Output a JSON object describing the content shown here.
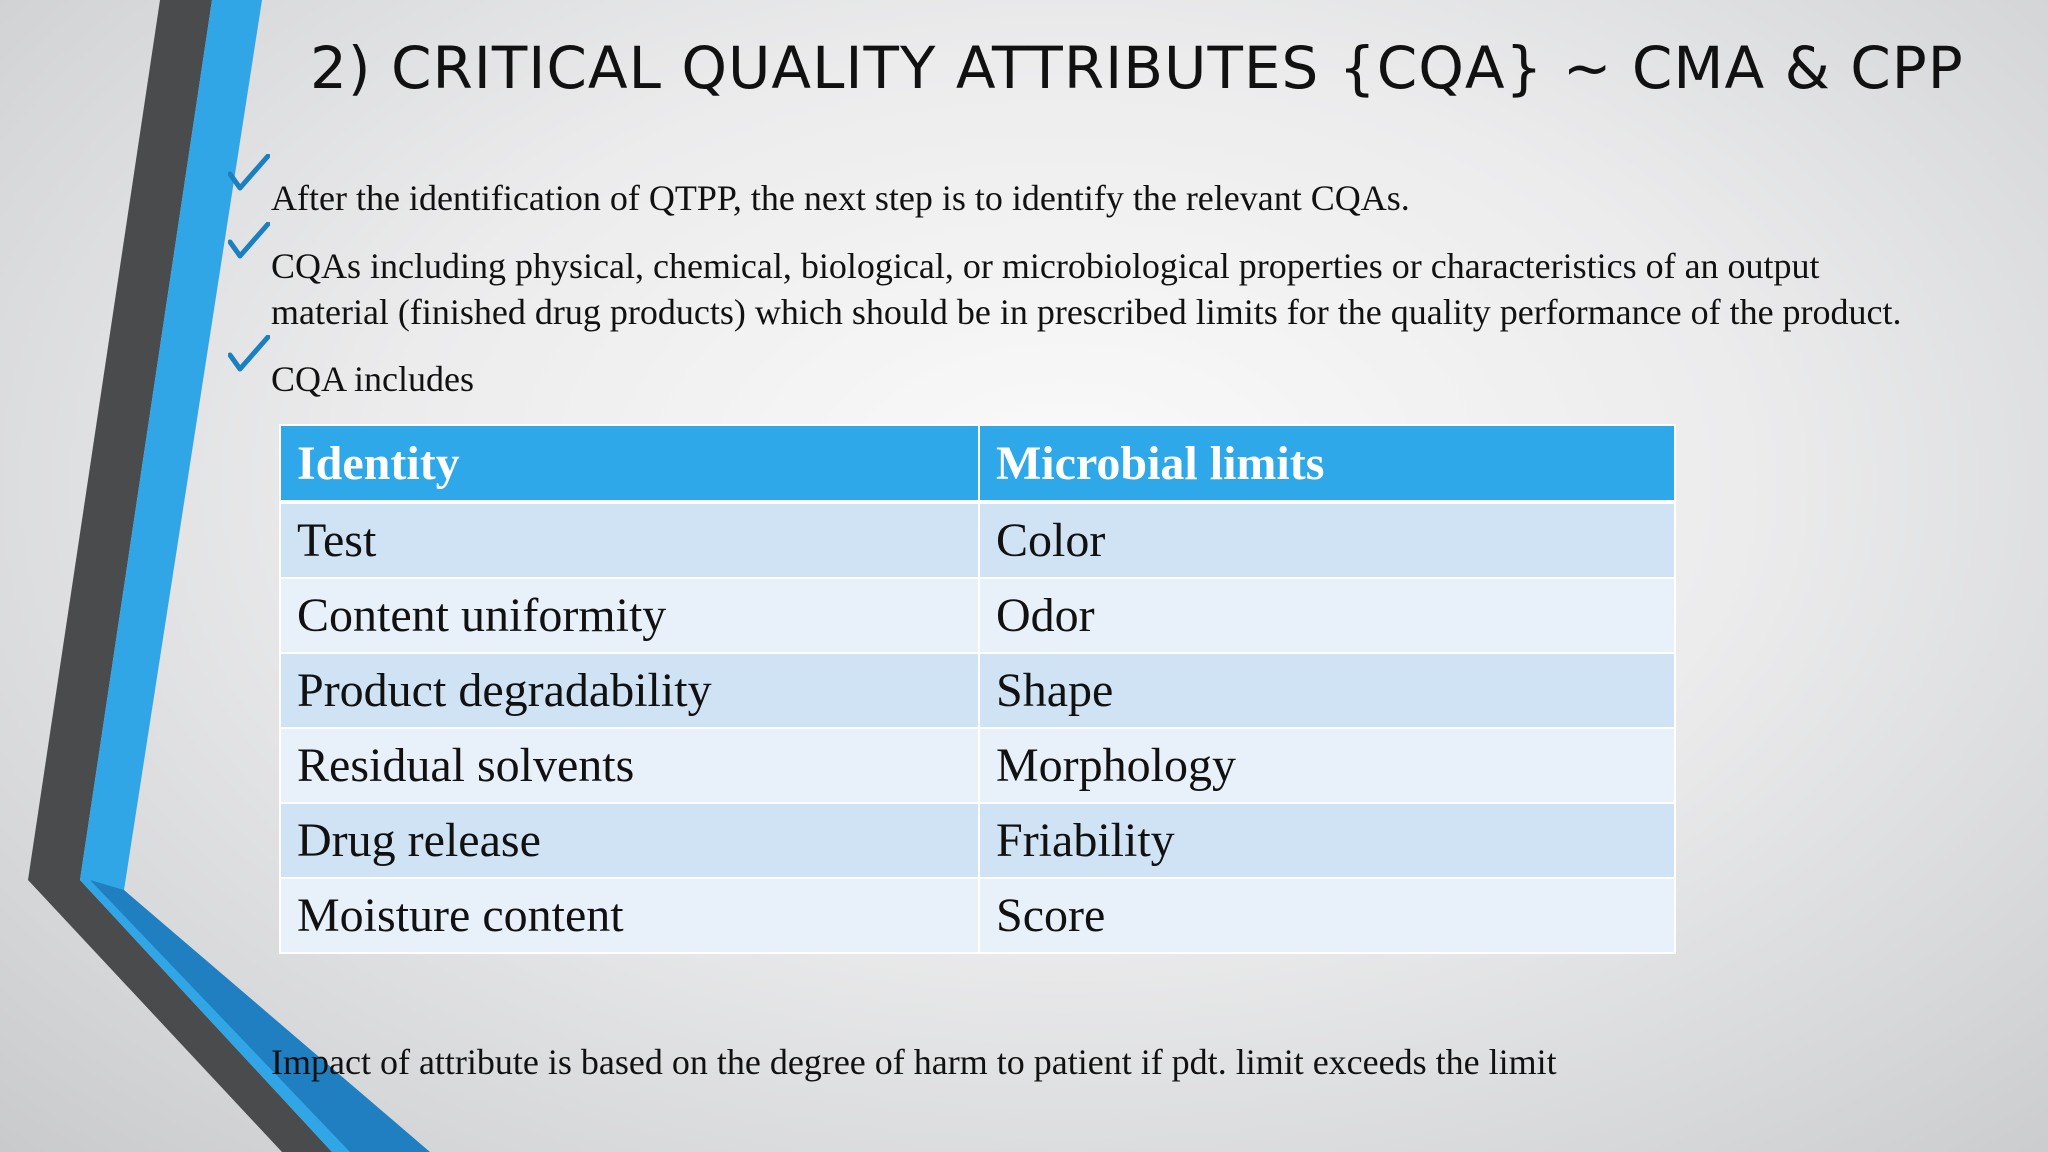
{
  "title": "2) CRITICAL QUALITY ATTRIBUTES {CQA} ~ CMA & CPP",
  "bullets": [
    "After the identification of QTPP, the next step is to identify the relevant CQAs.",
    " CQAs including physical, chemical, biological, or microbiological properties or characteristics of an output",
    "material (finished drug products) which should be in prescribed limits for the quality performance of the product.",
    "CQA includes"
  ],
  "table": {
    "headers": [
      "Identity",
      "Microbial limits"
    ],
    "rows": [
      [
        "Test",
        "Color"
      ],
      [
        "Content uniformity",
        "Odor"
      ],
      [
        "Product degradability",
        "Shape"
      ],
      [
        "Residual solvents",
        "Morphology"
      ],
      [
        "Drug release",
        "Friability"
      ],
      [
        "Moisture content",
        "Score"
      ]
    ]
  },
  "footer_bullet": "Impact of attribute is based on the degree of harm to patient if pdt. limit exceeds the limit",
  "icons": {
    "bullet": "checkmark-icon"
  },
  "colors": {
    "accent_blue": "#2ea8e8",
    "dark_gray": "#4a4b4d",
    "header_fill": "#2ea8e8",
    "row_fill_dark": "#cfe3f5",
    "row_fill_light": "#e8f1fa"
  }
}
